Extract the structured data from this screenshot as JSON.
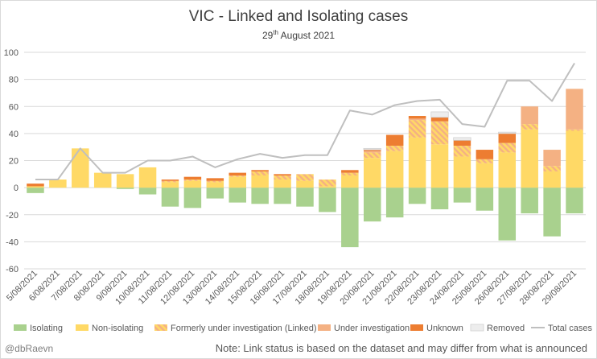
{
  "title_main": "VIC - Linked and Isolating cases",
  "subtitle": {
    "prefix": "29",
    "sup": "th",
    "rest": " August 2021"
  },
  "credit": "@dbRaevn",
  "note": "Note: Link status is based on the dataset and may differ from what is announced",
  "colors": {
    "isolating": "#a9d18e",
    "non_isolating": "#ffd966",
    "formerly": "#f4b183",
    "formerly_hatch": "#ffd966",
    "under_investigation": "#f4b183",
    "unknown": "#ed7d31",
    "removed": "#ededed",
    "total": "#bfbfbf",
    "grid": "#d9d9d9"
  },
  "chart_data": {
    "type": "bar",
    "stacked": true,
    "title": "VIC - Linked and Isolating cases",
    "subtitle": "29th August 2021",
    "xlabel": "",
    "ylabel": "",
    "ylim": [
      -60,
      100
    ],
    "yticks": [
      -60,
      -40,
      -20,
      0,
      20,
      40,
      60,
      80,
      100
    ],
    "grid": true,
    "legend_position": "bottom",
    "categories": [
      "5/08/2021",
      "6/08/2021",
      "7/08/2021",
      "8/08/2021",
      "9/08/2021",
      "10/08/2021",
      "11/08/2021",
      "12/08/2021",
      "13/08/2021",
      "14/08/2021",
      "15/08/2021",
      "16/08/2021",
      "17/08/2021",
      "18/08/2021",
      "19/08/2021",
      "20/08/2021",
      "21/08/2021",
      "22/08/2021",
      "23/08/2021",
      "24/08/2021",
      "25/08/2021",
      "26/08/2021",
      "27/08/2021",
      "28/08/2021",
      "29/08/2021"
    ],
    "series": [
      {
        "name": "Isolating",
        "values": [
          -4,
          0,
          0,
          0,
          -1,
          -5,
          -14,
          -15,
          -8,
          -11,
          -12,
          -12,
          -14,
          -18,
          -44,
          -25,
          -22,
          -12,
          -16,
          -11,
          -17,
          -39,
          -19,
          -36,
          -19
        ]
      },
      {
        "name": "Non-isolating",
        "values": [
          1,
          6,
          29,
          11,
          10,
          15,
          4,
          5,
          4,
          8,
          9,
          6,
          5,
          1,
          9,
          22,
          27,
          37,
          32,
          23,
          18,
          26,
          43,
          12,
          42
        ]
      },
      {
        "name": "Formerly under investigation (Linked)",
        "values": [
          0,
          0,
          0,
          0,
          0,
          0,
          1,
          1,
          1,
          1,
          3,
          3,
          5,
          5,
          2,
          4,
          4,
          13,
          17,
          8,
          3,
          7,
          4,
          4,
          1
        ]
      },
      {
        "name": "Under investigation",
        "values": [
          0,
          0,
          0,
          0,
          0,
          0,
          0,
          0,
          0,
          0,
          0,
          0,
          0,
          0,
          0,
          1,
          0,
          1,
          0,
          0,
          0,
          0,
          13,
          12,
          30
        ]
      },
      {
        "name": "Unknown",
        "values": [
          2,
          0,
          0,
          0,
          0,
          0,
          1,
          2,
          2,
          2,
          1,
          1,
          0,
          0,
          2,
          1,
          8,
          2,
          3,
          4,
          7,
          7,
          0,
          0,
          0
        ]
      },
      {
        "name": "Removed",
        "values": [
          0,
          0,
          0,
          0,
          0,
          0,
          0,
          0,
          0,
          0,
          0,
          0,
          0,
          0,
          0,
          1,
          0,
          0,
          4,
          2,
          0,
          1,
          0,
          0,
          0
        ]
      },
      {
        "name": "Total cases",
        "type": "line",
        "values": [
          6,
          6,
          29,
          11,
          11,
          20,
          20,
          23,
          15,
          21,
          25,
          22,
          24,
          24,
          57,
          54,
          61,
          64,
          65,
          47,
          45,
          79,
          79,
          64,
          92
        ]
      }
    ]
  }
}
